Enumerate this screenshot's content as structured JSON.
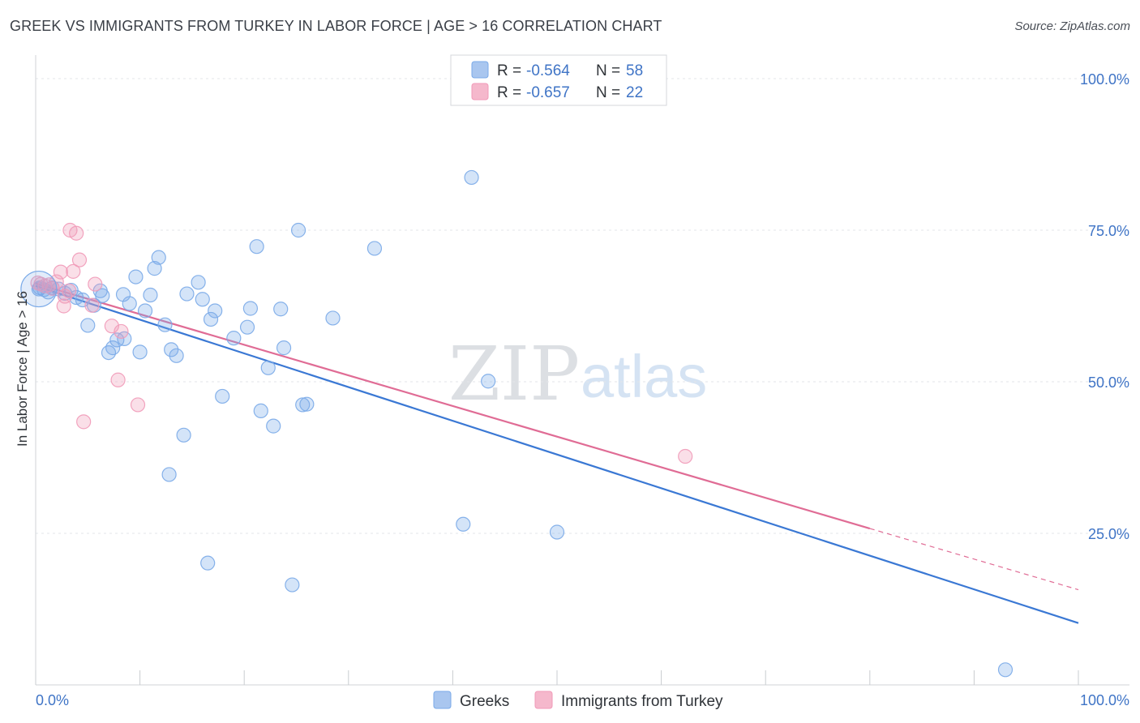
{
  "header": {
    "title": "GREEK VS IMMIGRANTS FROM TURKEY IN LABOR FORCE | AGE > 16 CORRELATION CHART",
    "source": "Source: ZipAtlas.com"
  },
  "watermark": {
    "zip": "ZIP",
    "atlas": "atlas"
  },
  "legend": {
    "rows": [
      {
        "r_label": "R =",
        "r_value": "-0.564",
        "n_label": "N =",
        "n_value": "58",
        "color": "#a9c6ef"
      },
      {
        "r_label": "R =",
        "r_value": "-0.657",
        "n_label": "N =",
        "n_value": "22",
        "color": "#f5b8cc"
      }
    ]
  },
  "chart_data": {
    "type": "scatter",
    "title": "GREEK VS IMMIGRANTS FROM TURKEY IN LABOR FORCE | AGE > 16 CORRELATION CHART",
    "xlabel": "",
    "ylabel": "In Labor Force | Age > 16",
    "xlim": [
      0,
      100
    ],
    "ylim": [
      0,
      100
    ],
    "x_tick_labels": [
      "0.0%",
      "100.0%"
    ],
    "y_ticks": [
      25,
      50,
      75,
      100
    ],
    "y_tick_labels": [
      "25.0%",
      "50.0%",
      "75.0%",
      "100.0%"
    ],
    "grid": true,
    "legend_position": "top-center",
    "series": [
      {
        "name": "Greeks",
        "color": "#7aaae8",
        "line_color": "#3a78d4",
        "trend": {
          "x": [
            0,
            100
          ],
          "y": [
            65.8,
            10.2
          ]
        },
        "points": [
          [
            0.4,
            65.5
          ],
          [
            0.8,
            65.2
          ],
          [
            1.2,
            64.8
          ],
          [
            1.6,
            65.5
          ],
          [
            2.2,
            65.3
          ],
          [
            2.8,
            64.6
          ],
          [
            3.4,
            65.1
          ],
          [
            3.9,
            63.9
          ],
          [
            4.5,
            63.5
          ],
          [
            5.0,
            59.3
          ],
          [
            5.6,
            62.6
          ],
          [
            6.2,
            65.0
          ],
          [
            6.4,
            64.2
          ],
          [
            7.0,
            54.8
          ],
          [
            7.4,
            55.6
          ],
          [
            7.8,
            56.9
          ],
          [
            8.5,
            57.1
          ],
          [
            8.4,
            64.4
          ],
          [
            9.0,
            62.9
          ],
          [
            9.6,
            67.3
          ],
          [
            10.0,
            54.9
          ],
          [
            10.5,
            61.7
          ],
          [
            11.0,
            64.3
          ],
          [
            11.4,
            68.7
          ],
          [
            11.8,
            70.5
          ],
          [
            12.4,
            59.4
          ],
          [
            13.0,
            55.3
          ],
          [
            13.5,
            54.3
          ],
          [
            14.2,
            41.2
          ],
          [
            14.5,
            64.5
          ],
          [
            15.6,
            66.4
          ],
          [
            16.0,
            63.6
          ],
          [
            16.8,
            60.3
          ],
          [
            17.2,
            61.7
          ],
          [
            17.9,
            47.6
          ],
          [
            19.0,
            57.2
          ],
          [
            20.3,
            59.0
          ],
          [
            20.6,
            62.1
          ],
          [
            21.2,
            72.3
          ],
          [
            21.6,
            45.2
          ],
          [
            22.3,
            52.3
          ],
          [
            22.8,
            42.7
          ],
          [
            23.5,
            62.0
          ],
          [
            23.8,
            55.6
          ],
          [
            25.2,
            75.0
          ],
          [
            25.6,
            46.2
          ],
          [
            26.0,
            46.3
          ],
          [
            28.5,
            60.5
          ],
          [
            32.5,
            72.0
          ],
          [
            41.8,
            83.7
          ],
          [
            43.4,
            50.1
          ],
          [
            12.8,
            34.7
          ],
          [
            16.5,
            20.1
          ],
          [
            24.6,
            16.5
          ],
          [
            41.0,
            26.5
          ],
          [
            50.0,
            25.2
          ],
          [
            93.0,
            2.5
          ],
          [
            0.3,
            65.3
          ]
        ]
      },
      {
        "name": "Immigrants from Turkey",
        "color": "#f19ab8",
        "line_color": "#e06c95",
        "trend": {
          "x": [
            0,
            80
          ],
          "y": [
            66.2,
            25.8
          ]
        },
        "trend_dashed": {
          "x": [
            80,
            100
          ],
          "y": [
            25.8,
            15.7
          ]
        },
        "points": [
          [
            0.2,
            66.3
          ],
          [
            0.5,
            66.1
          ],
          [
            0.9,
            65.8
          ],
          [
            1.3,
            66.0
          ],
          [
            1.6,
            65.4
          ],
          [
            2.0,
            66.5
          ],
          [
            2.4,
            68.1
          ],
          [
            2.8,
            64.1
          ],
          [
            2.7,
            62.5
          ],
          [
            3.2,
            65.0
          ],
          [
            3.3,
            75.0
          ],
          [
            3.6,
            68.2
          ],
          [
            3.9,
            74.5
          ],
          [
            4.2,
            70.1
          ],
          [
            4.6,
            43.4
          ],
          [
            5.4,
            62.6
          ],
          [
            5.7,
            66.1
          ],
          [
            7.3,
            59.2
          ],
          [
            8.2,
            58.3
          ],
          [
            7.9,
            50.3
          ],
          [
            9.8,
            46.2
          ],
          [
            62.3,
            37.7
          ]
        ]
      }
    ]
  },
  "bottom_legend": {
    "items": [
      {
        "label": "Greeks",
        "color": "#a9c6ef"
      },
      {
        "label": "Immigrants from Turkey",
        "color": "#f5b8cc"
      }
    ]
  }
}
